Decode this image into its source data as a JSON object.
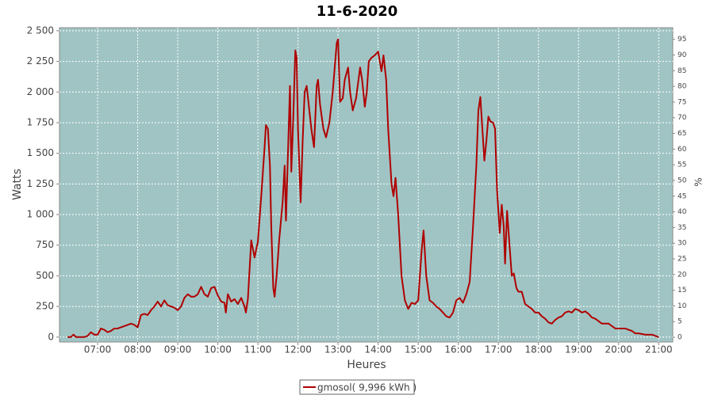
{
  "chart_data": {
    "type": "line",
    "title": "11-6-2020",
    "xlabel": "Heures",
    "ylabel": "Watts",
    "y2label": "%",
    "x": [
      "06:15",
      "06:20",
      "06:24",
      "06:28",
      "06:40",
      "06:45",
      "06:50",
      "06:55",
      "07:00",
      "07:05",
      "07:10",
      "07:15",
      "07:20",
      "07:25",
      "07:30",
      "07:40",
      "07:50",
      "07:55",
      "08:00",
      "08:05",
      "08:10",
      "08:15",
      "08:20",
      "08:25",
      "08:30",
      "08:35",
      "08:40",
      "08:45",
      "08:50",
      "08:55",
      "09:00",
      "09:05",
      "09:10",
      "09:15",
      "09:20",
      "09:25",
      "09:30",
      "09:35",
      "09:40",
      "09:45",
      "09:50",
      "09:55",
      "10:00",
      "10:05",
      "10:10",
      "10:12",
      "10:15",
      "10:20",
      "10:25",
      "10:30",
      "10:35",
      "10:40",
      "10:42",
      "10:45",
      "10:50",
      "10:55",
      "11:00",
      "11:05",
      "11:10",
      "11:12",
      "11:15",
      "11:18",
      "11:20",
      "11:23",
      "11:25",
      "11:28",
      "11:32",
      "11:37",
      "11:40",
      "11:42",
      "11:45",
      "11:48",
      "11:50",
      "11:53",
      "11:56",
      "11:58",
      "12:00",
      "12:04",
      "12:07",
      "12:10",
      "12:13",
      "12:16",
      "12:20",
      "12:24",
      "12:28",
      "12:30",
      "12:33",
      "12:38",
      "12:42",
      "12:47",
      "12:52",
      "12:58",
      "13:00",
      "13:03",
      "13:07",
      "13:10",
      "13:15",
      "13:18",
      "13:22",
      "13:27",
      "13:33",
      "13:36",
      "13:40",
      "13:43",
      "13:46",
      "13:50",
      "13:55",
      "14:00",
      "14:05",
      "14:08",
      "14:12",
      "14:15",
      "14:20",
      "14:23",
      "14:26",
      "14:30",
      "14:35",
      "14:40",
      "14:45",
      "14:50",
      "14:55",
      "15:00",
      "15:05",
      "15:08",
      "15:12",
      "15:17",
      "15:22",
      "15:27",
      "15:32",
      "15:37",
      "15:42",
      "15:47",
      "15:52",
      "15:57",
      "16:02",
      "16:07",
      "16:12",
      "16:17",
      "16:22",
      "16:27",
      "16:30",
      "16:33",
      "16:36",
      "16:39",
      "16:42",
      "16:45",
      "16:48",
      "16:52",
      "16:55",
      "16:58",
      "17:02",
      "17:05",
      "17:08",
      "17:10",
      "17:13",
      "17:16",
      "17:20",
      "17:23",
      "17:27",
      "17:30",
      "17:35",
      "17:40",
      "17:45",
      "17:50",
      "17:55",
      "18:00",
      "18:05",
      "18:10",
      "18:15",
      "18:20",
      "18:25",
      "18:30",
      "18:35",
      "18:40",
      "18:45",
      "18:50",
      "18:55",
      "19:00",
      "19:05",
      "19:10",
      "19:15",
      "19:20",
      "19:25",
      "19:30",
      "19:35",
      "19:40",
      "19:45",
      "19:50",
      "19:55",
      "20:00",
      "20:10",
      "20:15",
      "20:20",
      "20:25",
      "20:30",
      "20:40",
      "20:50",
      "21:00"
    ],
    "series": [
      {
        "name": "gmosol( 9,996 kWh )",
        "color": "#b00000",
        "values": [
          0,
          0,
          20,
          0,
          0,
          10,
          40,
          20,
          20,
          70,
          60,
          40,
          50,
          70,
          70,
          90,
          110,
          100,
          80,
          180,
          190,
          180,
          220,
          250,
          290,
          250,
          300,
          260,
          250,
          240,
          220,
          250,
          320,
          350,
          330,
          330,
          350,
          410,
          350,
          330,
          400,
          410,
          340,
          290,
          280,
          200,
          350,
          290,
          310,
          270,
          320,
          250,
          200,
          310,
          790,
          650,
          780,
          1150,
          1550,
          1730,
          1700,
          1400,
          900,
          400,
          330,
          500,
          800,
          1100,
          1400,
          950,
          1500,
          2050,
          1350,
          1800,
          2340,
          2280,
          1700,
          1100,
          1600,
          2000,
          2050,
          1900,
          1700,
          1550,
          2050,
          2100,
          1900,
          1700,
          1630,
          1750,
          2000,
          2400,
          2430,
          1920,
          1950,
          2100,
          2200,
          2000,
          1850,
          1950,
          2200,
          2100,
          1880,
          2000,
          2250,
          2280,
          2300,
          2330,
          2170,
          2300,
          2100,
          1700,
          1250,
          1150,
          1300,
          1000,
          500,
          300,
          230,
          280,
          270,
          300,
          700,
          870,
          500,
          300,
          280,
          250,
          230,
          200,
          170,
          160,
          200,
          300,
          320,
          280,
          350,
          450,
          900,
          1400,
          1850,
          1960,
          1700,
          1440,
          1600,
          1800,
          1760,
          1750,
          1700,
          1200,
          850,
          1080,
          900,
          600,
          1030,
          800,
          500,
          520,
          400,
          370,
          370,
          270,
          250,
          230,
          200,
          200,
          170,
          150,
          120,
          110,
          140,
          160,
          170,
          200,
          210,
          200,
          230,
          220,
          200,
          210,
          190,
          160,
          150,
          130,
          110,
          110,
          110,
          90,
          70,
          70,
          70,
          60,
          50,
          30,
          30,
          20,
          20,
          0
        ]
      }
    ],
    "xlim": [
      "06:03",
      "21:21"
    ],
    "xticks": [
      "07:00",
      "08:00",
      "09:00",
      "10:00",
      "11:00",
      "12:00",
      "13:00",
      "14:00",
      "15:00",
      "16:00",
      "17:00",
      "18:00",
      "19:00",
      "20:00",
      "21:00"
    ],
    "ylim": [
      -40,
      2525
    ],
    "yticks": [
      0,
      250,
      500,
      750,
      {
        "value": 1000,
        "label": "1 000"
      },
      {
        "value": 1250,
        "label": "1 250"
      },
      {
        "value": 1500,
        "label": "1 500"
      },
      {
        "value": 1750,
        "label": "1 750"
      },
      {
        "value": 2000,
        "label": "2 000"
      },
      {
        "value": 2250,
        "label": "2 250"
      },
      {
        "value": 2500,
        "label": "2 500"
      }
    ],
    "y2lim": [
      -1.5,
      98.7
    ],
    "y2ticks": [
      0,
      5,
      10,
      15,
      20,
      25,
      30,
      35,
      40,
      45,
      50,
      55,
      60,
      65,
      70,
      75,
      80,
      85,
      90,
      95
    ],
    "grid": true,
    "plot_background": "#a0c4c4",
    "legend": "bottom"
  }
}
